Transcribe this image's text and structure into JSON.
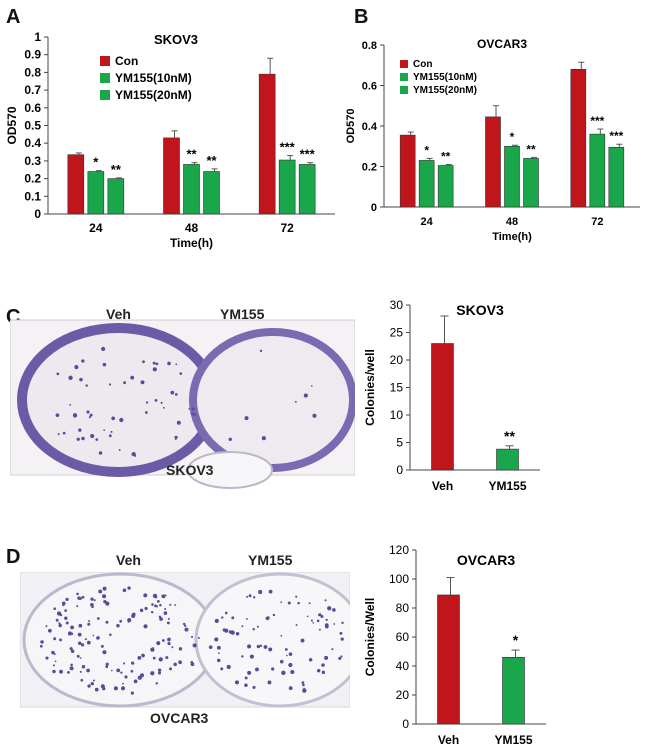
{
  "panels": {
    "A": "A",
    "B": "B",
    "C": "C",
    "D": "D"
  },
  "colors": {
    "con": "#c0161b",
    "ym10": "#1aa64a",
    "ym20": "#1aa64a",
    "veh": "#c0161b",
    "ym155": "#1aa64a",
    "stain": "#5b4a9a"
  },
  "photos": {
    "C": {
      "left_label": "Veh",
      "right_label": "YM155",
      "caption": "SKOV3"
    },
    "D": {
      "left_label": "Veh",
      "right_label": "YM155",
      "caption": "OVCAR3"
    }
  },
  "chart_data": [
    {
      "id": "A",
      "type": "bar",
      "title": "SKOV3",
      "xlabel": "Time(h)",
      "ylabel": "OD570",
      "ylim": [
        0,
        1
      ],
      "yticks": [
        "0",
        "0.1",
        "0.2",
        "0.3",
        "0.4",
        "0.5",
        "0.6",
        "0.7",
        "0.8",
        "0.9",
        "1"
      ],
      "categories": [
        "24",
        "48",
        "72"
      ],
      "legend": [
        "Con",
        "YM155(10nM)",
        "YM155(20nM)"
      ],
      "series": [
        {
          "name": "Con",
          "values": [
            0.335,
            0.43,
            0.79
          ],
          "errors": [
            0.01,
            0.04,
            0.09
          ],
          "sig": [
            "",
            "",
            ""
          ]
        },
        {
          "name": "YM155(10nM)",
          "values": [
            0.24,
            0.28,
            0.305
          ],
          "errors": [
            0.005,
            0.01,
            0.025
          ],
          "sig": [
            "*",
            "**",
            "***"
          ]
        },
        {
          "name": "YM155(20nM)",
          "values": [
            0.2,
            0.24,
            0.28
          ],
          "errors": [
            0.004,
            0.015,
            0.01
          ],
          "sig": [
            "**",
            "**",
            "***"
          ]
        }
      ]
    },
    {
      "id": "B",
      "type": "bar",
      "title": "OVCAR3",
      "xlabel": "Time(h)",
      "ylabel": "OD570",
      "ylim": [
        0,
        0.8
      ],
      "yticks": [
        "0",
        "0.2",
        "0.4",
        "0.6",
        "0.8"
      ],
      "categories": [
        "24",
        "48",
        "72"
      ],
      "legend": [
        "Con",
        "YM155(10nM)",
        "YM155(20nM)"
      ],
      "series": [
        {
          "name": "Con",
          "values": [
            0.355,
            0.445,
            0.68
          ],
          "errors": [
            0.015,
            0.055,
            0.035
          ],
          "sig": [
            "",
            "",
            ""
          ]
        },
        {
          "name": "YM155(10nM)",
          "values": [
            0.23,
            0.3,
            0.36
          ],
          "errors": [
            0.01,
            0.005,
            0.025
          ],
          "sig": [
            "*",
            "*",
            "***"
          ]
        },
        {
          "name": "YM155(20nM)",
          "values": [
            0.205,
            0.24,
            0.295
          ],
          "errors": [
            0.005,
            0.005,
            0.015
          ],
          "sig": [
            "**",
            "**",
            "***"
          ]
        }
      ]
    },
    {
      "id": "C",
      "type": "bar",
      "title": "SKOV3",
      "xlabel": "",
      "ylabel": "Colonies/well",
      "ylim": [
        0,
        30
      ],
      "yticks": [
        "0",
        "5",
        "10",
        "15",
        "20",
        "25",
        "30"
      ],
      "categories": [
        "Veh",
        "YM155"
      ],
      "values": [
        23,
        3.8
      ],
      "errors": [
        5,
        0.6
      ],
      "sig": [
        "",
        "**"
      ]
    },
    {
      "id": "D",
      "type": "bar",
      "title": "OVCAR3",
      "xlabel": "",
      "ylabel": "Colonies/Well",
      "ylim": [
        0,
        120
      ],
      "yticks": [
        "0",
        "20",
        "40",
        "60",
        "80",
        "100",
        "120"
      ],
      "categories": [
        "Veh",
        "YM155"
      ],
      "values": [
        89,
        46
      ],
      "errors": [
        12,
        5
      ],
      "sig": [
        "",
        "*"
      ]
    }
  ]
}
